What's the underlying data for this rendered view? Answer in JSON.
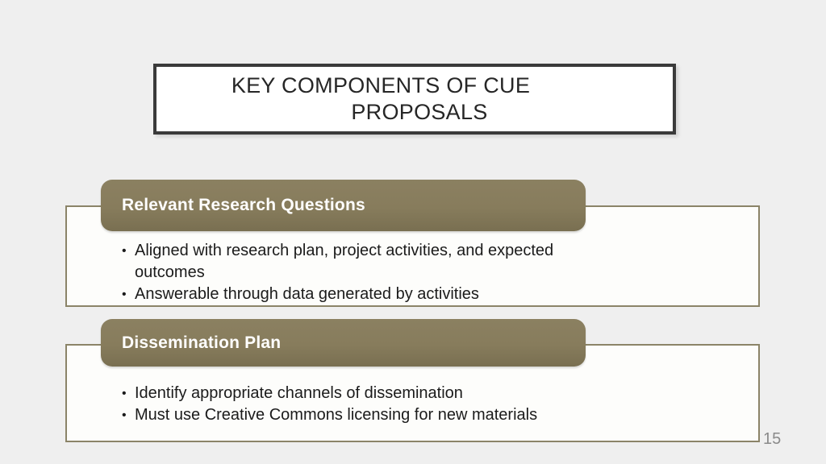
{
  "slide": {
    "title": "KEY COMPONENTS OF CUE PROPOSALS",
    "title_line1": "KEY COMPONENTS OF CUE",
    "title_line2": "PROPOSALS",
    "bullet_char": "•",
    "page_number": "15",
    "colors": {
      "background": "#EFEFEF",
      "accent_olive": "#877C5C",
      "content_box_fill": "#FDFDFB",
      "content_box_border": "#8B8468",
      "title_box_border": "#3A3A3A",
      "title_text": "#262626",
      "body_text": "#1B1B1B",
      "header_text": "#FFFFFF",
      "page_number_text": "#8A8A8A"
    },
    "sections": [
      {
        "header": "Relevant Research Questions",
        "bullets": [
          "Aligned with research plan, project activities, and expected outcomes",
          "Answerable through data generated by activities"
        ]
      },
      {
        "header": "Dissemination Plan",
        "bullets": [
          "Identify appropriate channels of dissemination",
          "Must use Creative Commons licensing for new materials"
        ]
      }
    ]
  }
}
